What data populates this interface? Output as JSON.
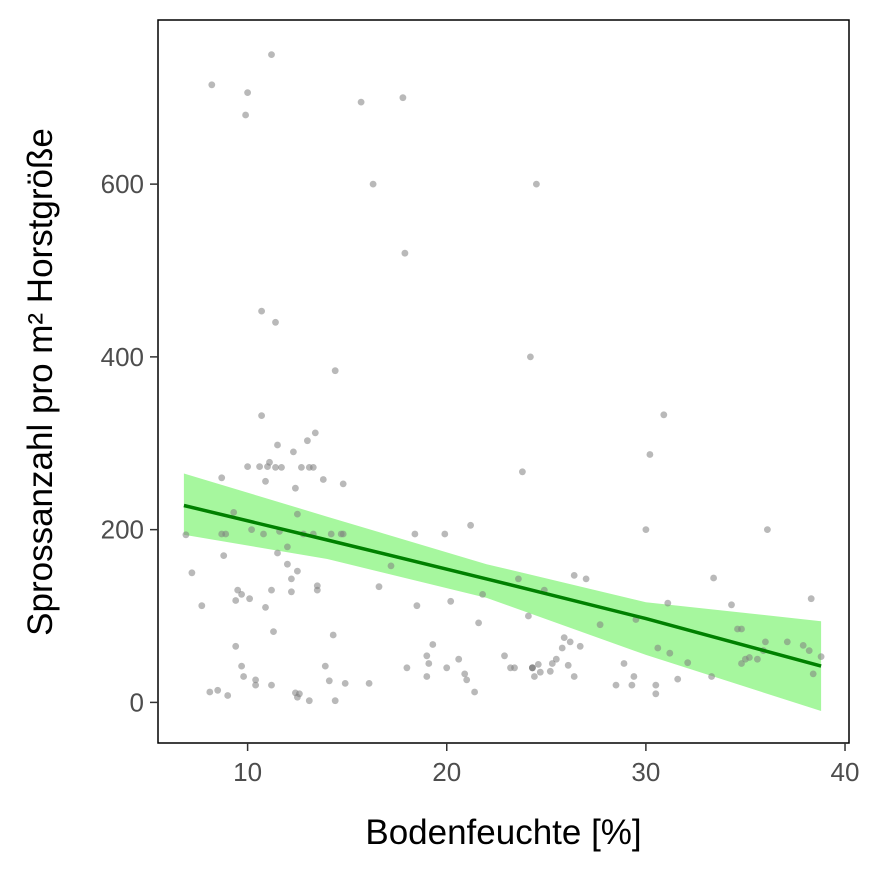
{
  "chart_data": {
    "type": "scatter",
    "title": "",
    "xlabel": "Bodenfeuchte [%]",
    "ylabel": "Sprossanzahl pro m² Horstgröße",
    "xlim": [
      5.5,
      40.2
    ],
    "ylim": [
      -47,
      790
    ],
    "xticks": [
      10,
      20,
      30,
      40
    ],
    "yticks": [
      0,
      200,
      400,
      600
    ],
    "grid": false,
    "legend": "none",
    "colors": {
      "points": "#808080",
      "fit_line": "#008000",
      "confidence_band": "#a6f79e",
      "frame": "#000000"
    },
    "points": [
      [
        6.9,
        194
      ],
      [
        7.2,
        150
      ],
      [
        7.7,
        112
      ],
      [
        8.1,
        12
      ],
      [
        8.2,
        715
      ],
      [
        8.5,
        14
      ],
      [
        8.7,
        260
      ],
      [
        8.7,
        195
      ],
      [
        8.8,
        170
      ],
      [
        8.9,
        195
      ],
      [
        9.0,
        8
      ],
      [
        9.3,
        220
      ],
      [
        9.4,
        118
      ],
      [
        9.4,
        65
      ],
      [
        9.5,
        130
      ],
      [
        9.7,
        125
      ],
      [
        9.7,
        42
      ],
      [
        9.8,
        30
      ],
      [
        9.9,
        680
      ],
      [
        10.0,
        273
      ],
      [
        10.0,
        706
      ],
      [
        10.1,
        120
      ],
      [
        10.2,
        200
      ],
      [
        10.4,
        20
      ],
      [
        10.4,
        26
      ],
      [
        10.6,
        273
      ],
      [
        10.7,
        332
      ],
      [
        10.7,
        453
      ],
      [
        10.8,
        195
      ],
      [
        10.9,
        110
      ],
      [
        10.9,
        256
      ],
      [
        11.0,
        273
      ],
      [
        11.1,
        278
      ],
      [
        11.2,
        750
      ],
      [
        11.2,
        20
      ],
      [
        11.2,
        130
      ],
      [
        11.3,
        82
      ],
      [
        11.4,
        272
      ],
      [
        11.4,
        440
      ],
      [
        11.5,
        173
      ],
      [
        11.5,
        298
      ],
      [
        11.6,
        198
      ],
      [
        11.7,
        272
      ],
      [
        12.0,
        180
      ],
      [
        12.0,
        160
      ],
      [
        12.2,
        143
      ],
      [
        12.2,
        128
      ],
      [
        12.3,
        290
      ],
      [
        12.4,
        11
      ],
      [
        12.4,
        248
      ],
      [
        12.5,
        6
      ],
      [
        12.5,
        218
      ],
      [
        12.5,
        152
      ],
      [
        12.6,
        10
      ],
      [
        12.7,
        272
      ],
      [
        12.8,
        195
      ],
      [
        13.0,
        303
      ],
      [
        13.1,
        272
      ],
      [
        13.1,
        2
      ],
      [
        13.3,
        195
      ],
      [
        13.3,
        272
      ],
      [
        13.4,
        312
      ],
      [
        13.5,
        135
      ],
      [
        13.5,
        130
      ],
      [
        13.8,
        258
      ],
      [
        13.9,
        42
      ],
      [
        14.1,
        25
      ],
      [
        14.2,
        195
      ],
      [
        14.3,
        78
      ],
      [
        14.4,
        384
      ],
      [
        14.4,
        2
      ],
      [
        14.7,
        195
      ],
      [
        14.8,
        195
      ],
      [
        14.8,
        253
      ],
      [
        14.9,
        22
      ],
      [
        15.7,
        695
      ],
      [
        16.1,
        22
      ],
      [
        16.3,
        600
      ],
      [
        16.6,
        134
      ],
      [
        17.2,
        158
      ],
      [
        17.8,
        700
      ],
      [
        17.9,
        520
      ],
      [
        18.0,
        40
      ],
      [
        18.4,
        195
      ],
      [
        18.5,
        112
      ],
      [
        19.0,
        30
      ],
      [
        19.0,
        54
      ],
      [
        19.1,
        45
      ],
      [
        19.3,
        67
      ],
      [
        19.9,
        195
      ],
      [
        20.0,
        40
      ],
      [
        20.2,
        117
      ],
      [
        20.6,
        50
      ],
      [
        20.9,
        33
      ],
      [
        21.0,
        26
      ],
      [
        21.2,
        205
      ],
      [
        21.4,
        12
      ],
      [
        21.6,
        92
      ],
      [
        21.8,
        125
      ],
      [
        22.9,
        54
      ],
      [
        23.2,
        40
      ],
      [
        23.4,
        40
      ],
      [
        23.6,
        143
      ],
      [
        23.8,
        267
      ],
      [
        24.1,
        100
      ],
      [
        24.2,
        400
      ],
      [
        24.3,
        40
      ],
      [
        24.3,
        40
      ],
      [
        24.3,
        40
      ],
      [
        24.4,
        30
      ],
      [
        24.5,
        600
      ],
      [
        24.6,
        44
      ],
      [
        24.7,
        35
      ],
      [
        24.9,
        130
      ],
      [
        25.2,
        36
      ],
      [
        25.3,
        45
      ],
      [
        25.5,
        50
      ],
      [
        25.8,
        63
      ],
      [
        25.9,
        75
      ],
      [
        26.1,
        43
      ],
      [
        26.2,
        70
      ],
      [
        26.4,
        30
      ],
      [
        26.4,
        147
      ],
      [
        26.7,
        65
      ],
      [
        27.0,
        143
      ],
      [
        27.7,
        90
      ],
      [
        28.5,
        20
      ],
      [
        28.9,
        45
      ],
      [
        29.3,
        20
      ],
      [
        29.4,
        30
      ],
      [
        29.5,
        96
      ],
      [
        30.0,
        200
      ],
      [
        30.2,
        287
      ],
      [
        30.5,
        10
      ],
      [
        30.5,
        20
      ],
      [
        30.6,
        63
      ],
      [
        30.9,
        333
      ],
      [
        31.1,
        115
      ],
      [
        31.2,
        57
      ],
      [
        31.6,
        27
      ],
      [
        32.1,
        46
      ],
      [
        33.3,
        30
      ],
      [
        33.4,
        144
      ],
      [
        34.3,
        113
      ],
      [
        34.6,
        85
      ],
      [
        34.8,
        85
      ],
      [
        34.8,
        45
      ],
      [
        35.0,
        50
      ],
      [
        35.2,
        52
      ],
      [
        35.6,
        50
      ],
      [
        35.9,
        60
      ],
      [
        36.0,
        70
      ],
      [
        36.1,
        200
      ],
      [
        37.1,
        70
      ],
      [
        37.9,
        66
      ],
      [
        38.2,
        60
      ],
      [
        38.3,
        120
      ],
      [
        38.4,
        33
      ],
      [
        38.8,
        53
      ]
    ],
    "fit": {
      "x": [
        6.8,
        14,
        22,
        30,
        38.8
      ],
      "y": [
        228,
        188,
        143,
        97,
        42
      ],
      "lower": [
        194,
        166,
        121,
        55,
        -10
      ],
      "upper": [
        265,
        215,
        160,
        116,
        94
      ]
    }
  }
}
